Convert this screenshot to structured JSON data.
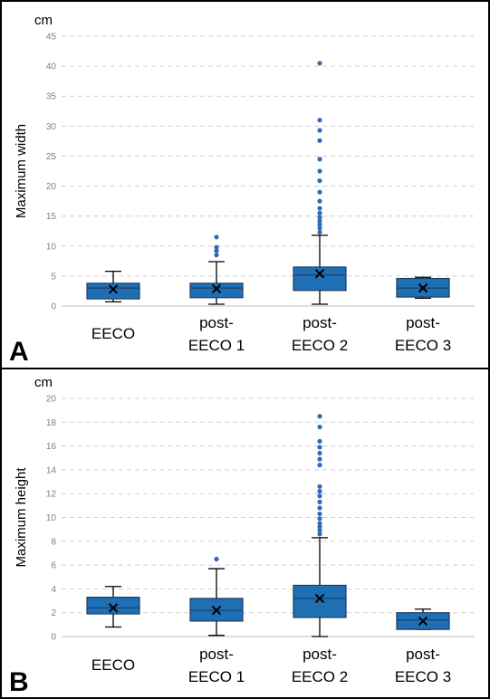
{
  "colors": {
    "box_fill": "#1f6fb5",
    "box_stroke": "#1a3d66",
    "outlier": "#2f6ab8",
    "grid": "#d0d0d0",
    "tick_label": "#7f7f7f"
  },
  "chart_data": [
    {
      "type": "box",
      "panel_letter": "A",
      "unit": "cm",
      "ylabel": "Maximum width",
      "ylim": [
        0,
        45
      ],
      "yticks": [
        0,
        5,
        10,
        15,
        20,
        25,
        30,
        35,
        40,
        45
      ],
      "grid": true,
      "categories": [
        {
          "label_lines": [
            "EECO"
          ]
        },
        {
          "label_lines": [
            "post-",
            "EECO 1"
          ]
        },
        {
          "label_lines": [
            "post-",
            "EECO 2"
          ]
        },
        {
          "label_lines": [
            "post-",
            "EECO 3"
          ]
        }
      ],
      "series": [
        {
          "min": 0.7,
          "q1": 1.2,
          "median": 3.0,
          "q3": 3.8,
          "max": 5.8,
          "mean": 2.8,
          "outliers": []
        },
        {
          "min": 0.3,
          "q1": 1.4,
          "median": 3.0,
          "q3": 3.8,
          "max": 7.4,
          "mean": 2.9,
          "outliers": [
            8.5,
            9.2,
            9.8,
            11.5
          ]
        },
        {
          "min": 0.3,
          "q1": 2.6,
          "median": 5.2,
          "q3": 6.5,
          "max": 11.8,
          "mean": 5.4,
          "outliers": [
            12.3,
            13.0,
            13.6,
            14.2,
            14.8,
            15.5,
            16.3,
            17.5,
            19.0,
            20.9,
            22.5,
            24.5,
            27.6,
            29.3,
            31.0,
            40.5
          ]
        },
        {
          "min": 1.3,
          "q1": 1.5,
          "median": 3.0,
          "q3": 4.6,
          "max": 4.8,
          "mean": 3.0,
          "outliers": []
        }
      ]
    },
    {
      "type": "box",
      "panel_letter": "B",
      "unit": "cm",
      "ylabel": "Maximum height",
      "ylim": [
        0,
        20
      ],
      "yticks": [
        0,
        2,
        4,
        6,
        8,
        10,
        12,
        14,
        16,
        18,
        20
      ],
      "grid": true,
      "categories": [
        {
          "label_lines": [
            "EECO"
          ]
        },
        {
          "label_lines": [
            "post-",
            "EECO 1"
          ]
        },
        {
          "label_lines": [
            "post-",
            "EECO 2"
          ]
        },
        {
          "label_lines": [
            "post-",
            "EECO 3"
          ]
        }
      ],
      "series": [
        {
          "min": 0.8,
          "q1": 1.9,
          "median": 2.4,
          "q3": 3.3,
          "max": 4.2,
          "mean": 2.4,
          "outliers": []
        },
        {
          "min": 0.1,
          "q1": 1.3,
          "median": 2.2,
          "q3": 3.2,
          "max": 5.7,
          "mean": 2.2,
          "outliers": [
            6.5
          ]
        },
        {
          "min": 0.0,
          "q1": 1.6,
          "median": 3.2,
          "q3": 4.3,
          "max": 8.3,
          "mean": 3.2,
          "outliers": [
            8.6,
            8.9,
            9.2,
            9.5,
            9.9,
            10.3,
            10.8,
            11.3,
            11.8,
            12.2,
            12.6,
            14.4,
            14.9,
            15.4,
            15.9,
            16.4,
            17.6,
            18.5
          ]
        },
        {
          "min": 0.6,
          "q1": 0.6,
          "median": 1.4,
          "q3": 2.0,
          "max": 2.3,
          "mean": 1.3,
          "outliers": []
        }
      ]
    }
  ]
}
